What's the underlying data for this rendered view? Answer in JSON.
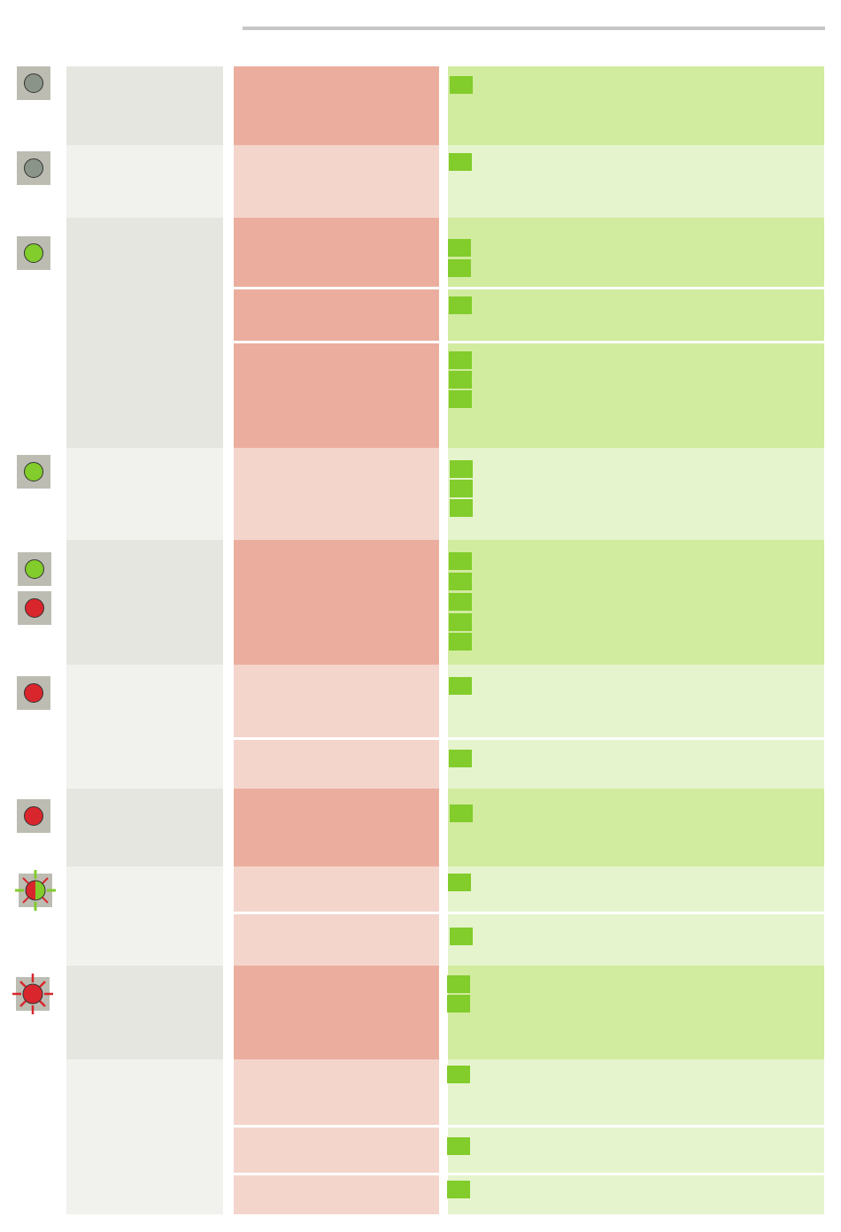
{
  "colors": {
    "led_off": "#8a9488",
    "led_on": "#82cc2b",
    "led_fault": "#d9262c",
    "status_box": "#bcbcb2",
    "col1_dark": "#e6e6e1",
    "col1_light": "#f1f1ee",
    "col2_dark": "#ebae9e",
    "col2_light": "#f4d5cc",
    "col3_dark": "#d1eb9f",
    "col3_light": "#e5f4cd",
    "square": "#82cc2b"
  },
  "status_icons": [
    {
      "state": "off",
      "icon": "grey-led-icon"
    },
    {
      "state": "off",
      "icon": "grey-led-icon"
    },
    {
      "state": "on",
      "icon": "green-led-icon"
    },
    {
      "state": "on",
      "icon": "green-led-icon"
    },
    {
      "state": "on",
      "icon": "green-led-icon"
    },
    {
      "state": "fault",
      "icon": "red-led-icon"
    },
    {
      "state": "fault",
      "icon": "red-led-icon"
    },
    {
      "state": "fault",
      "icon": "red-led-icon"
    },
    {
      "state": "flashing-red-green",
      "icon": "flashing-red-green-led-icon"
    },
    {
      "state": "flashing-red",
      "icon": "flashing-red-led-icon"
    }
  ]
}
